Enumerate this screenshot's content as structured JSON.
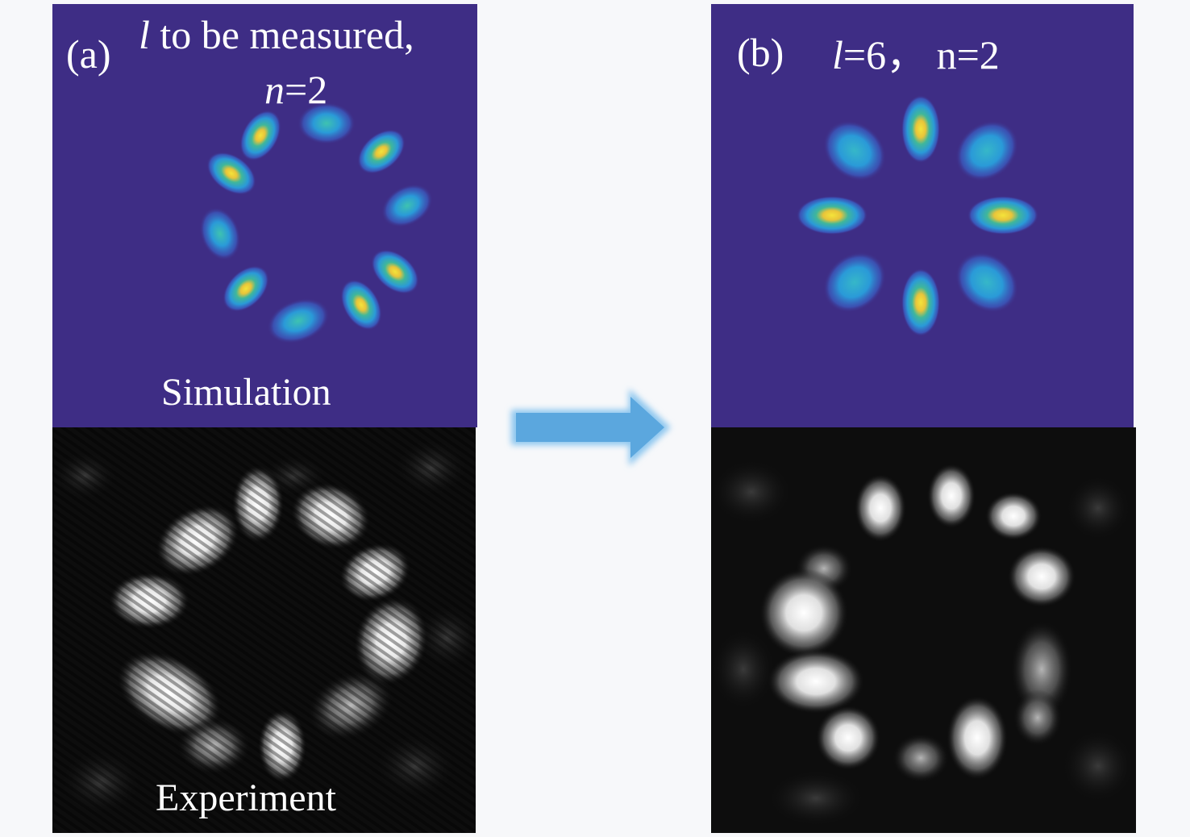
{
  "panel_a": {
    "tag": "(a)",
    "symbol_l": "l",
    "title_rest": " to be measured,",
    "symbol_n": "n",
    "title_n_rest": "=2"
  },
  "panel_b": {
    "tag": "(b)",
    "symbol_l": "l",
    "title_rest": "=6， n=2"
  },
  "captions": {
    "simulation": "Simulation",
    "experiment": "Experiment"
  },
  "colors": {
    "simulation_background": "#3e2d85",
    "experiment_background": "#0d0d0d",
    "arrow": "#6aaee0",
    "label_text": "#ffffff",
    "page_background": "#f7f8fa"
  }
}
